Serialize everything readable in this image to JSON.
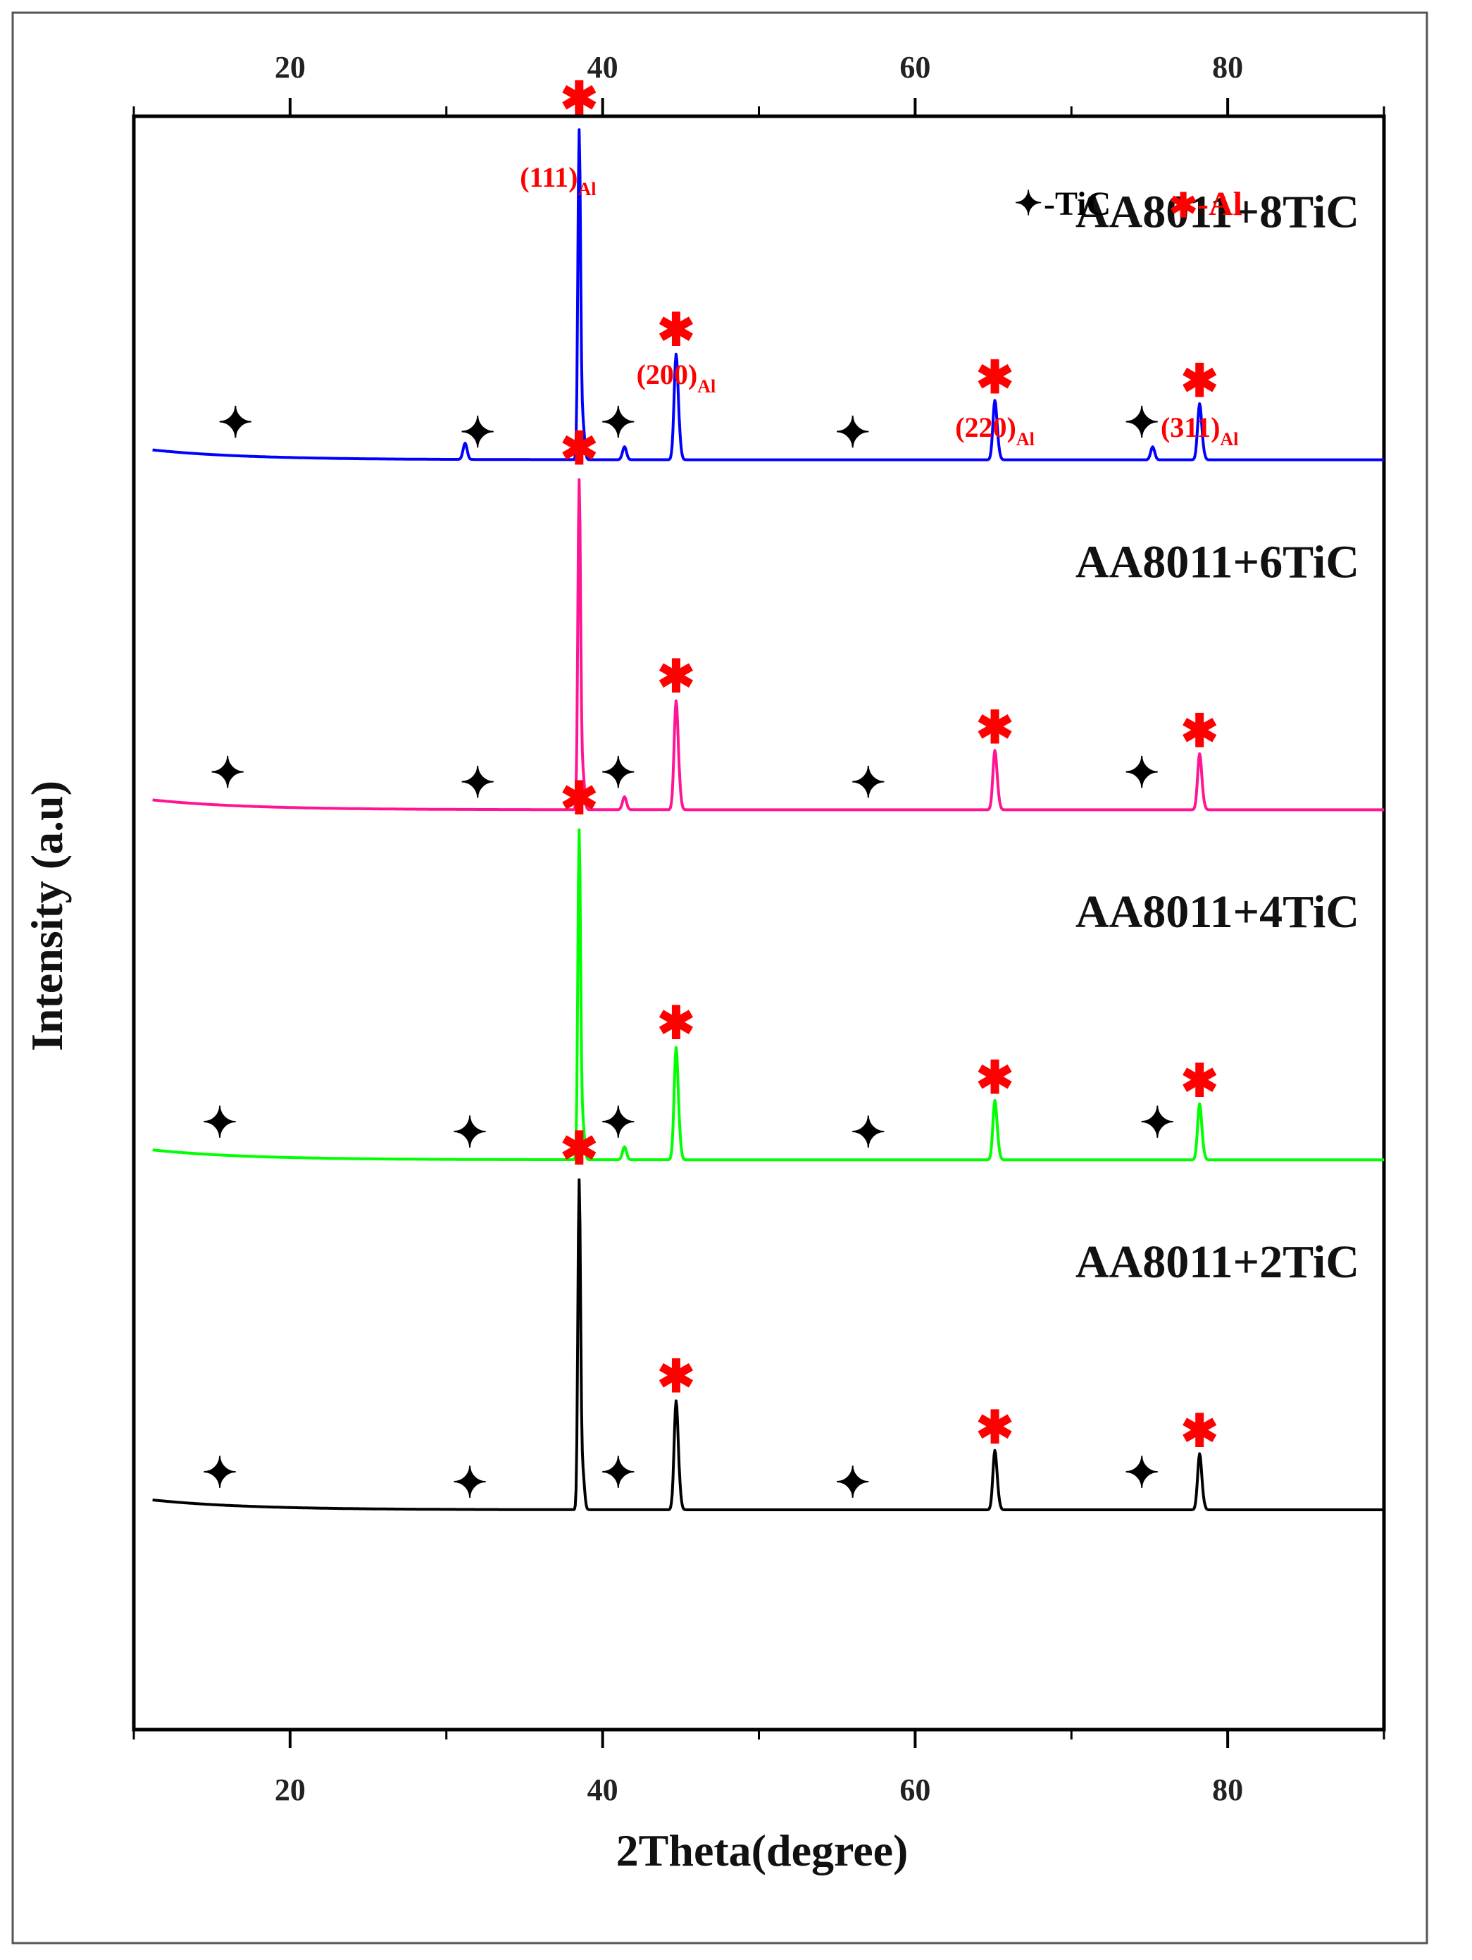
{
  "chart_data": {
    "type": "line",
    "title": "",
    "xlabel": "2Theta(degree)",
    "ylabel": "Intensity (a.u)",
    "xlim": [
      10,
      90
    ],
    "xticks_major": [
      20,
      40,
      60,
      80
    ],
    "xticks_minor": [
      10,
      30,
      50,
      70,
      90
    ],
    "top_axis_xlim": [
      10,
      90
    ],
    "legend": [
      {
        "symbol": "✦",
        "label": "-TiC",
        "color": "#000000"
      },
      {
        "symbol": "✱",
        "label": "-Al",
        "color": "#ff0000"
      }
    ],
    "peak_positions": {
      "Al": [
        38.5,
        44.7,
        65.1,
        78.2
      ],
      "TiC_minor": [
        31.2,
        41.4,
        75.2
      ]
    },
    "al_planes": [
      {
        "plane": "(111)",
        "sub": "Al",
        "x": 38.5
      },
      {
        "plane": "(200)",
        "sub": "Al",
        "x": 44.7
      },
      {
        "plane": "(220)",
        "sub": "Al",
        "x": 65.1
      },
      {
        "plane": "(311)",
        "sub": "Al",
        "x": 78.2
      }
    ],
    "series": [
      {
        "name": "AA8011+8TiC",
        "color": "#0000ff",
        "baseline": 0.82,
        "peaks": [
          {
            "x": 38.5,
            "height": 1.0
          },
          {
            "x": 44.7,
            "height": 0.32
          },
          {
            "x": 65.1,
            "height": 0.18
          },
          {
            "x": 78.2,
            "height": 0.17
          },
          {
            "x": 31.2,
            "height": 0.05
          },
          {
            "x": 41.4,
            "height": 0.04
          },
          {
            "x": 75.2,
            "height": 0.04
          }
        ],
        "tic_marks_x": [
          16.5,
          32.0,
          41.0,
          56.0,
          74.5
        ]
      },
      {
        "name": "AA8011+6TiC",
        "color": "#ff1493",
        "baseline": 0.58,
        "peaks": [
          {
            "x": 38.5,
            "height": 1.0
          },
          {
            "x": 44.7,
            "height": 0.33
          },
          {
            "x": 65.1,
            "height": 0.18
          },
          {
            "x": 78.2,
            "height": 0.17
          },
          {
            "x": 41.4,
            "height": 0.04
          }
        ],
        "tic_marks_x": [
          16.0,
          32.0,
          41.0,
          57.0,
          74.5
        ]
      },
      {
        "name": "AA8011+4TiC",
        "color": "#00ff00",
        "baseline": 0.34,
        "peaks": [
          {
            "x": 38.5,
            "height": 1.0
          },
          {
            "x": 44.7,
            "height": 0.34
          },
          {
            "x": 65.1,
            "height": 0.18
          },
          {
            "x": 78.2,
            "height": 0.17
          },
          {
            "x": 41.4,
            "height": 0.04
          }
        ],
        "tic_marks_x": [
          15.5,
          31.5,
          41.0,
          57.0,
          75.5
        ]
      },
      {
        "name": "AA8011+2TiC",
        "color": "#000000",
        "baseline": 0.1,
        "peaks": [
          {
            "x": 38.5,
            "height": 1.0
          },
          {
            "x": 44.7,
            "height": 0.33
          },
          {
            "x": 65.1,
            "height": 0.18
          },
          {
            "x": 78.2,
            "height": 0.17
          }
        ],
        "tic_marks_x": [
          15.5,
          31.5,
          41.0,
          56.0,
          74.5
        ]
      }
    ]
  }
}
